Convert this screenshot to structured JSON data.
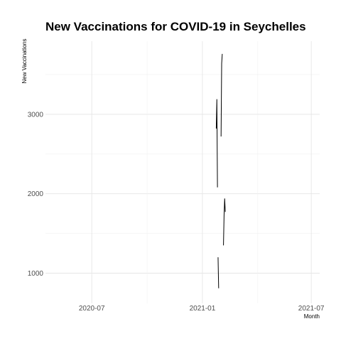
{
  "chart_data": {
    "type": "line",
    "title": "New Vaccinations for COVID-19 in Seychelles",
    "xlabel": "Month",
    "ylabel": "New Vaccinations",
    "x_ticks": [
      {
        "label": "2020-07",
        "value": "2020-07-01"
      },
      {
        "label": "2021-01",
        "value": "2021-01-01"
      },
      {
        "label": "2021-07",
        "value": "2021-07-01"
      }
    ],
    "y_ticks": [
      1000,
      2000,
      3000
    ],
    "xlim": [
      "2020-04-15",
      "2021-07-15"
    ],
    "ylim": [
      620,
      3920
    ],
    "grid": true,
    "series": [
      {
        "name": "New Vaccinations",
        "segments": [
          [
            [
              "2021-01-24",
              2820
            ],
            [
              "2021-01-25",
              3190
            ],
            [
              "2021-01-26",
              2080
            ]
          ],
          [
            [
              "2021-01-27",
              1200
            ],
            [
              "2021-01-28",
              810
            ]
          ],
          [
            [
              "2021-02-01",
              2720
            ],
            [
              "2021-02-02",
              3640
            ],
            [
              "2021-02-03",
              3760
            ]
          ],
          [
            [
              "2021-02-05",
              1350
            ],
            [
              "2021-02-06",
              1730
            ],
            [
              "2021-02-07",
              1940
            ],
            [
              "2021-02-08",
              1770
            ]
          ]
        ]
      }
    ]
  }
}
